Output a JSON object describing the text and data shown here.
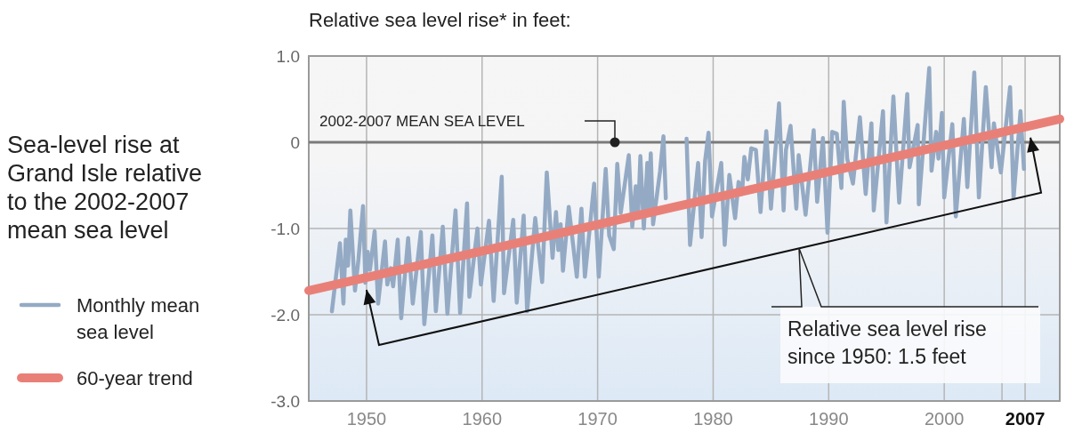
{
  "chart_data": {
    "type": "line",
    "title": "Sea-level rise at Grand Isle relative to the 2002-2007 mean sea level",
    "ylabel": "Relative sea level rise* in feet:",
    "xlim": [
      1945,
      2010
    ],
    "xticks": [
      1950,
      1960,
      1970,
      1980,
      1990,
      2000,
      {
        "value": 2005,
        "label": null
      },
      2007
    ],
    "ylim": [
      -3,
      1
    ],
    "yticks": [
      {
        "value": -3,
        "label": "-3.0"
      },
      {
        "value": -2,
        "label": "-2.0"
      },
      {
        "value": -1,
        "label": "-1.0"
      },
      0,
      {
        "value": 1,
        "label": "1.0"
      }
    ],
    "grid": true,
    "legend": "left",
    "marker": "none",
    "series": [
      {
        "name": "Monthly mean sea level",
        "type": "line",
        "color": "#94aac4",
        "x": [
          1947.0,
          1947.7,
          1948.0,
          1948.2,
          1948.4,
          1948.6,
          1949.0,
          1949.3,
          1949.7,
          1949.9,
          1950.1,
          1950.3,
          1950.7,
          1951.0,
          1951.6,
          1951.8,
          1952.1,
          1952.3,
          1952.7,
          1953.0,
          1953.6,
          1954.0,
          1954.7,
          1955.0,
          1955.7,
          1956.0,
          1956.6,
          1957.0,
          1957.7,
          1958.1,
          1958.7,
          1958.9,
          1959.6,
          1959.9,
          1960.6,
          1961.0,
          1961.7,
          1961.9,
          1962.7,
          1963.0,
          1963.6,
          1963.9,
          1964.6,
          1965.2,
          1965.6,
          1966.1,
          1966.4,
          1966.6,
          1966.8,
          1967.0,
          1967.5,
          1968.2,
          1968.6,
          1968.9,
          1969.7,
          1970.1,
          1970.7,
          1971.0,
          1971.4,
          1971.7,
          1972.0,
          1972.7,
          1973.0,
          1973.3,
          1973.5,
          1973.7,
          1974.0,
          1974.3,
          1974.4,
          1974.6,
          1974.8,
          1975.4,
          1975.7,
          1975.9,
          1976.8,
          1977.7,
          1978.0,
          1978.7,
          1979.0,
          1979.3,
          1979.6,
          1979.9,
          1980.7,
          1981.0,
          1981.4,
          1981.9,
          1982.2,
          1982.5,
          1982.7,
          1983.0,
          1983.3,
          1983.7,
          1984.1,
          1984.6,
          1985.0,
          1985.7,
          1986.1,
          1986.3,
          1986.7,
          1987.2,
          1987.4,
          1988.0,
          1988.7,
          1989.0,
          1989.5,
          1989.9,
          1990.3,
          1990.7,
          1991.1,
          1991.3,
          1991.6,
          1992.1,
          1992.7,
          1993.2,
          1993.7,
          1993.9,
          1994.7,
          1995.0,
          1995.6,
          1996.1,
          1996.8,
          1997.0,
          1997.7,
          1997.8,
          1998.2,
          1998.7,
          1998.9,
          1999.3,
          1999.5,
          1999.8,
          2000.0,
          2000.7,
          2001.0,
          2001.7,
          2002.0,
          2002.6,
          2003.0,
          2003.6,
          2004.1,
          2004.3,
          2004.9,
          2005.7,
          2006.0,
          2006.6,
          2006.9
        ],
        "values": [
          -1.96,
          -1.17,
          -1.87,
          -1.13,
          -1.43,
          -0.79,
          -1.72,
          -1.36,
          -0.74,
          -1.63,
          -1.27,
          -1.48,
          -1.03,
          -1.87,
          -1.15,
          -1.65,
          -1.46,
          -1.67,
          -1.13,
          -2.04,
          -1.11,
          -1.87,
          -1.04,
          -2.11,
          -1.08,
          -1.96,
          -0.98,
          -1.99,
          -0.79,
          -1.98,
          -0.71,
          -1.79,
          -1.0,
          -1.65,
          -0.91,
          -1.84,
          -0.4,
          -1.75,
          -0.9,
          -1.86,
          -0.85,
          -1.96,
          -0.88,
          -1.62,
          -0.35,
          -1.34,
          -0.81,
          -1.25,
          -0.95,
          -1.49,
          -0.75,
          -1.56,
          -0.77,
          -1.56,
          -0.48,
          -1.56,
          -0.31,
          -1.08,
          -1.24,
          -0.25,
          -0.82,
          -0.15,
          -0.98,
          -0.51,
          -0.86,
          -0.16,
          -1.0,
          -0.24,
          -0.77,
          -0.13,
          -0.95,
          -0.34,
          0.07,
          -0.65,
          null,
          0.04,
          -1.19,
          -0.24,
          -1.1,
          -0.22,
          0.11,
          -0.86,
          -0.24,
          -1.19,
          -0.38,
          -0.88,
          -0.46,
          -0.6,
          -0.17,
          -0.43,
          -0.07,
          -0.09,
          -0.81,
          0.13,
          -0.77,
          0.45,
          -0.79,
          -0.09,
          0.19,
          -0.77,
          -0.15,
          -0.84,
          0.14,
          -0.69,
          0.05,
          -1.05,
          0.12,
          0.1,
          -0.53,
          0.47,
          -0.19,
          -0.48,
          0.29,
          -0.6,
          0.22,
          -0.79,
          0.36,
          -0.93,
          0.53,
          -0.7,
          0.56,
          -0.29,
          0.2,
          -0.72,
          -0.02,
          0.86,
          -0.33,
          0.12,
          -0.19,
          0.34,
          -0.64,
          0.21,
          -0.86,
          0.27,
          -0.52,
          0.81,
          -0.64,
          0.64,
          -0.29,
          0.22,
          -0.35,
          0.64,
          -0.65,
          0.36,
          -0.31
        ]
      },
      {
        "name": "60-year trend",
        "type": "line",
        "color": "#e98078",
        "x": [
          1945,
          2010
        ],
        "values": [
          -1.72,
          0.27
        ]
      }
    ],
    "ref_lines": [
      {
        "axis": "y",
        "value": 0,
        "label": "2002-2007 MEAN SEA LEVEL",
        "color": "#7a7a7a"
      }
    ],
    "annotations": [
      "Relative sea level rise since 1950: 1.5 feet"
    ]
  }
}
